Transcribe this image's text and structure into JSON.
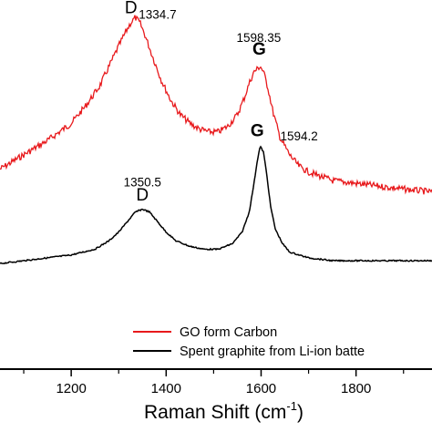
{
  "chart_data": {
    "type": "line",
    "title": "",
    "xlabel": "Raman Shift (cm",
    "xlabel_sup": "-1",
    "xlabel_end": ")",
    "ylabel": "",
    "xlim": [
      1050,
      1960
    ],
    "ylim": [
      0,
      1
    ],
    "x_ticks": [
      {
        "value": 1200,
        "label": "1200"
      },
      {
        "value": 1400,
        "label": "1400"
      },
      {
        "value": 1600,
        "label": "1600"
      },
      {
        "value": 1800,
        "label": "1800"
      }
    ],
    "grid": false,
    "legend": {
      "placement": "bottom-right",
      "entries": [
        {
          "label": "GO form Carbon",
          "color": "#e8191c"
        },
        {
          "label": "Spent graphite from Li-ion batte",
          "color": "#000000"
        }
      ]
    },
    "series": [
      {
        "label": "GO form Carbon",
        "color": "#e8191c",
        "x": [
          1050,
          1100,
          1150,
          1200,
          1230,
          1260,
          1280,
          1300,
          1315,
          1325,
          1335,
          1345,
          1355,
          1370,
          1390,
          1410,
          1430,
          1450,
          1470,
          1490,
          1510,
          1530,
          1550,
          1565,
          1575,
          1585,
          1592,
          1598,
          1605,
          1615,
          1625,
          1640,
          1660,
          1680,
          1700,
          1750,
          1800,
          1850,
          1900,
          1960
        ],
        "y": [
          0.46,
          0.51,
          0.56,
          0.62,
          0.68,
          0.75,
          0.82,
          0.89,
          0.94,
          0.97,
          0.99,
          0.97,
          0.93,
          0.86,
          0.77,
          0.7,
          0.65,
          0.62,
          0.6,
          0.59,
          0.59,
          0.61,
          0.65,
          0.71,
          0.76,
          0.8,
          0.81,
          0.82,
          0.8,
          0.74,
          0.66,
          0.57,
          0.51,
          0.47,
          0.45,
          0.42,
          0.41,
          0.4,
          0.39,
          0.38
        ]
      },
      {
        "label": "Spent graphite from Li-ion batte",
        "color": "#000000",
        "x": [
          1050,
          1100,
          1150,
          1200,
          1250,
          1280,
          1300,
          1320,
          1335,
          1350,
          1365,
          1380,
          1400,
          1420,
          1450,
          1480,
          1510,
          1540,
          1560,
          1575,
          1585,
          1592,
          1598,
          1605,
          1612,
          1620,
          1630,
          1645,
          1660,
          1700,
          1750,
          1800,
          1850,
          1900,
          1960
        ],
        "y": [
          0.13,
          0.14,
          0.15,
          0.16,
          0.18,
          0.21,
          0.24,
          0.28,
          0.31,
          0.32,
          0.31,
          0.28,
          0.24,
          0.21,
          0.19,
          0.18,
          0.18,
          0.2,
          0.24,
          0.31,
          0.41,
          0.49,
          0.54,
          0.52,
          0.44,
          0.33,
          0.25,
          0.2,
          0.17,
          0.15,
          0.14,
          0.14,
          0.14,
          0.14,
          0.14
        ]
      }
    ],
    "annotations": [
      {
        "text": "D",
        "kind": "peak",
        "x": 1326,
        "y": 1.005
      },
      {
        "text": "1334.7",
        "kind": "num",
        "x": 1382,
        "y": 0.985
      },
      {
        "text": "1598.35",
        "kind": "num",
        "x": 1595,
        "y": 0.905
      },
      {
        "text": "G",
        "kind": "peak-bold",
        "x": 1596,
        "y": 0.86
      },
      {
        "text": "G",
        "kind": "peak-bold",
        "x": 1592,
        "y": 0.575
      },
      {
        "text": "1594.2",
        "kind": "num",
        "x": 1680,
        "y": 0.56
      },
      {
        "text": "1350.5",
        "kind": "num",
        "x": 1350,
        "y": 0.4
      },
      {
        "text": "D",
        "kind": "peak",
        "x": 1350,
        "y": 0.35
      }
    ]
  }
}
